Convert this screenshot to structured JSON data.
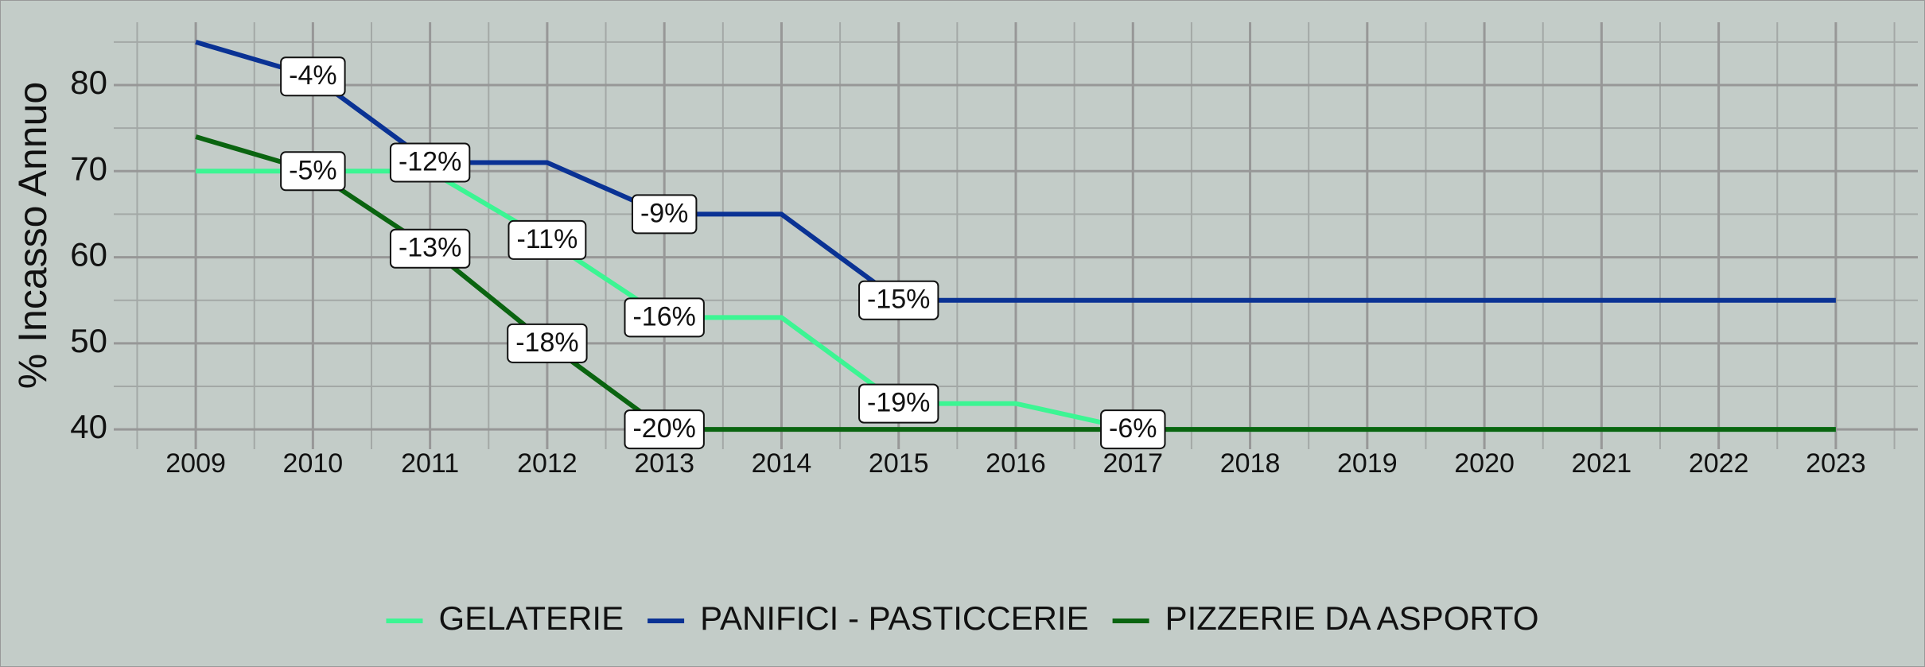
{
  "chart_data": {
    "type": "line",
    "y_label": "% Incasso Annuo",
    "x": [
      2009,
      2010,
      2011,
      2012,
      2013,
      2014,
      2015,
      2016,
      2017,
      2018,
      2019,
      2020,
      2021,
      2022,
      2023
    ],
    "series": [
      {
        "name": "GELATERIE",
        "color": "#3cf593",
        "values": [
          70,
          70,
          70,
          62,
          53,
          53,
          43,
          43,
          40,
          40,
          40,
          40,
          40,
          40,
          40
        ],
        "value_labels": [
          null,
          null,
          null,
          "-11%",
          "-16%",
          null,
          "-19%",
          null,
          "-6%",
          null,
          null,
          null,
          null,
          null,
          null
        ]
      },
      {
        "name": "PANIFICI - PASTICCERIE",
        "color": "#0a3294",
        "values": [
          85,
          81,
          71,
          71,
          65,
          65,
          55,
          55,
          55,
          55,
          55,
          55,
          55,
          55,
          55
        ],
        "value_labels": [
          null,
          "-4%",
          "-12%",
          null,
          "-9%",
          null,
          "-15%",
          null,
          null,
          null,
          null,
          null,
          null,
          null,
          null
        ]
      },
      {
        "name": "PIZZERIE DA ASPORTO",
        "color": "#0a6410",
        "values": [
          74,
          70,
          61,
          50,
          40,
          40,
          40,
          40,
          40,
          40,
          40,
          40,
          40,
          40,
          40
        ],
        "value_labels": [
          null,
          "-5%",
          "-13%",
          "-18%",
          "-20%",
          null,
          null,
          null,
          null,
          null,
          null,
          null,
          null,
          null,
          null
        ]
      }
    ],
    "xlim": [
      2008.3,
      2023.7
    ],
    "xticks": [
      2009,
      2010,
      2011,
      2012,
      2013,
      2014,
      2015,
      2016,
      2017,
      2018,
      2019,
      2020,
      2021,
      2022,
      2023
    ],
    "ylim": [
      37.7,
      87.3
    ],
    "yticks": [
      40,
      50,
      60,
      70,
      80
    ],
    "grid": true,
    "legend": "bottom"
  }
}
